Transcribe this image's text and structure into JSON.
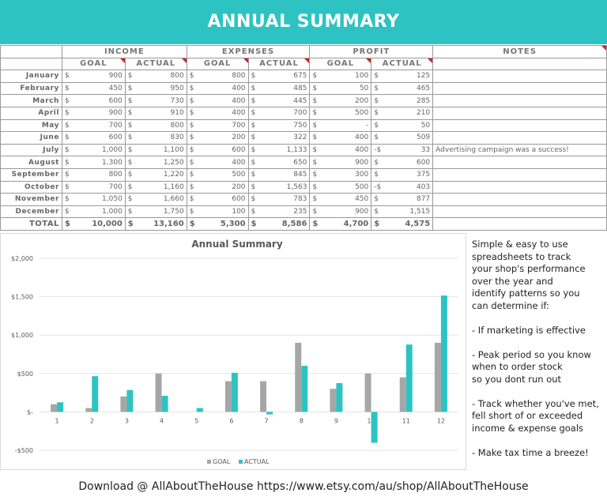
{
  "banner": {
    "title": "ANNUAL SUMMARY"
  },
  "table": {
    "groups": [
      "INCOME",
      "EXPENSES",
      "PROFIT",
      "NOTES"
    ],
    "subheaders": [
      "GOAL",
      "ACTUAL",
      "GOAL",
      "ACTUAL",
      "GOAL",
      "ACTUAL"
    ],
    "currency": "$",
    "rows": [
      {
        "month": "January",
        "vals": [
          "900",
          "800",
          "800",
          "675",
          "100",
          "125"
        ],
        "neg": [
          false,
          false,
          false,
          false,
          false,
          false
        ],
        "note": ""
      },
      {
        "month": "February",
        "vals": [
          "450",
          "950",
          "400",
          "485",
          "50",
          "465"
        ],
        "neg": [
          false,
          false,
          false,
          false,
          false,
          false
        ],
        "note": ""
      },
      {
        "month": "March",
        "vals": [
          "600",
          "730",
          "400",
          "445",
          "200",
          "285"
        ],
        "neg": [
          false,
          false,
          false,
          false,
          false,
          false
        ],
        "note": ""
      },
      {
        "month": "April",
        "vals": [
          "900",
          "910",
          "400",
          "700",
          "500",
          "210"
        ],
        "neg": [
          false,
          false,
          false,
          false,
          false,
          false
        ],
        "note": ""
      },
      {
        "month": "May",
        "vals": [
          "700",
          "800",
          "700",
          "750",
          "-",
          "50"
        ],
        "neg": [
          false,
          false,
          false,
          false,
          false,
          false
        ],
        "note": ""
      },
      {
        "month": "June",
        "vals": [
          "600",
          "830",
          "200",
          "322",
          "400",
          "509"
        ],
        "neg": [
          false,
          false,
          false,
          false,
          false,
          false
        ],
        "note": ""
      },
      {
        "month": "July",
        "vals": [
          "1,000",
          "1,100",
          "600",
          "1,133",
          "400",
          "33"
        ],
        "neg": [
          false,
          false,
          false,
          false,
          false,
          true
        ],
        "note": "Advertising campaign was a success!"
      },
      {
        "month": "August",
        "vals": [
          "1,300",
          "1,250",
          "400",
          "650",
          "900",
          "600"
        ],
        "neg": [
          false,
          false,
          false,
          false,
          false,
          false
        ],
        "note": ""
      },
      {
        "month": "September",
        "vals": [
          "800",
          "1,220",
          "500",
          "845",
          "300",
          "375"
        ],
        "neg": [
          false,
          false,
          false,
          false,
          false,
          false
        ],
        "note": ""
      },
      {
        "month": "October",
        "vals": [
          "700",
          "1,160",
          "200",
          "1,563",
          "500",
          "403"
        ],
        "neg": [
          false,
          false,
          false,
          false,
          false,
          true
        ],
        "note": ""
      },
      {
        "month": "November",
        "vals": [
          "1,050",
          "1,660",
          "600",
          "783",
          "450",
          "877"
        ],
        "neg": [
          false,
          false,
          false,
          false,
          false,
          false
        ],
        "note": ""
      },
      {
        "month": "December",
        "vals": [
          "1,000",
          "1,750",
          "100",
          "235",
          "900",
          "1,515"
        ],
        "neg": [
          false,
          false,
          false,
          false,
          false,
          false
        ],
        "note": ""
      }
    ],
    "total": {
      "label": "TOTAL",
      "vals": [
        "10,000",
        "13,160",
        "5,300",
        "8,586",
        "4,700",
        "4,575"
      ]
    }
  },
  "chart_data": {
    "type": "bar",
    "title": "Annual Summary",
    "categories": [
      "1",
      "2",
      "3",
      "4",
      "5",
      "6",
      "7",
      "8",
      "9",
      "10",
      "11",
      "12"
    ],
    "series": [
      {
        "name": "GOAL",
        "color": "#a6a6a6",
        "values": [
          100,
          50,
          200,
          500,
          0,
          400,
          400,
          900,
          300,
          500,
          450,
          900
        ]
      },
      {
        "name": "ACTUAL",
        "color": "#2ec3c3",
        "values": [
          125,
          465,
          285,
          210,
          50,
          509,
          -33,
          600,
          375,
          -403,
          877,
          1515
        ]
      }
    ],
    "yticks": [
      2000,
      1500,
      1000,
      500,
      0,
      -500
    ],
    "ytick_labels": [
      "$2,000",
      "$1,500",
      "$1,000",
      "$500",
      "$-",
      "-$500"
    ],
    "ylim": [
      -500,
      2000
    ],
    "grid": true,
    "legend": "bottom"
  },
  "side_text": "Simple & easy to use\nspreadsheets to track\nyour shop's performance\nover the year and\nidentify patterns so you\ncan determine if:\n\n- If marketing is effective\n\n- Peak period so you know\nwhen to order stock\nso you dont run out\n\n- Track whether you've met,\nfell short of or exceeded\nincome & expense goals\n\n- Make tax time a breeze!",
  "footer": "Download @ AllAboutTheHouse   https://www.etsy.com/au/shop/AllAboutTheHouse",
  "colors": {
    "accent": "#2ec3c3",
    "goal": "#a6a6a6",
    "flag": "#d0202a"
  }
}
